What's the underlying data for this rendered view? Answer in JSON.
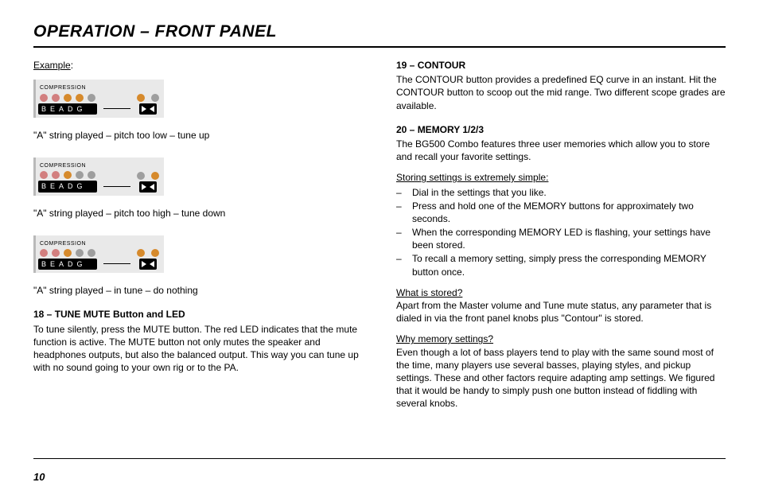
{
  "title": "OPERATION – FRONT PANEL",
  "page_number": "10",
  "left": {
    "example_label": "Example",
    "colon": ":",
    "compression_label": "COMPRESSION",
    "beadg": "BEADG",
    "panels": [
      {
        "main_leds": [
          "#d27f7f",
          "#d27f7f",
          "#d68a2c",
          "#d68a2c",
          "#9e9e9e"
        ],
        "side_leds": [
          "#d68a2c",
          "#9e9e9e"
        ],
        "caption": "\"A\" string played – pitch too low – tune up"
      },
      {
        "main_leds": [
          "#d27f7f",
          "#d27f7f",
          "#d68a2c",
          "#9e9e9e",
          "#9e9e9e"
        ],
        "side_leds": [
          "#9e9e9e",
          "#d68a2c"
        ],
        "caption": "\"A\" string played – pitch too high – tune down"
      },
      {
        "main_leds": [
          "#d27f7f",
          "#d27f7f",
          "#d68a2c",
          "#9e9e9e",
          "#9e9e9e"
        ],
        "side_leds": [
          "#d68a2c",
          "#d68a2c"
        ],
        "caption": "\"A\" string played – in tune – do nothing"
      }
    ],
    "section18_heading": "18 – TUNE MUTE Button and LED",
    "section18_body": "To tune silently, press the MUTE button. The red LED indicates that the mute function is active. The MUTE button not only mutes the speaker and headphones outputs, but also the balanced output. This way you can tune up with no sound going to your own rig or to the PA."
  },
  "right": {
    "section19_heading": "19 – CONTOUR",
    "section19_body": "The CONTOUR button provides a predefined EQ curve in an instant. Hit the CONTOUR button to scoop out the mid range. Two different scope grades are available.",
    "section20_heading": "20 – MEMORY 1/2/3",
    "section20_body": "The BG500 Combo features three user memories which allow you to store and recall your favorite settings.",
    "storing_heading": "Storing settings is extremely simple:",
    "storing_bullets": [
      "Dial in the settings that you like.",
      "Press and hold one of the MEMORY buttons for approximately two seconds.",
      "When the corresponding MEMORY LED is flashing, your settings have been stored.",
      "To recall a memory setting, simply press the corresponding MEMORY button once."
    ],
    "what_stored_heading": "What is stored?",
    "what_stored_body": "Apart from the Master volume and Tune mute status, any parameter that is dialed in via the front panel knobs plus \"Contour\" is stored.",
    "why_heading": "Why memory settings?",
    "why_body": "Even though a lot of bass players tend to play with the same sound most of the time, many players use several basses, playing styles, and pickup settings. These and other factors require adapting amp settings. We figured that it would be handy to simply push one button instead of fiddling with several knobs."
  }
}
